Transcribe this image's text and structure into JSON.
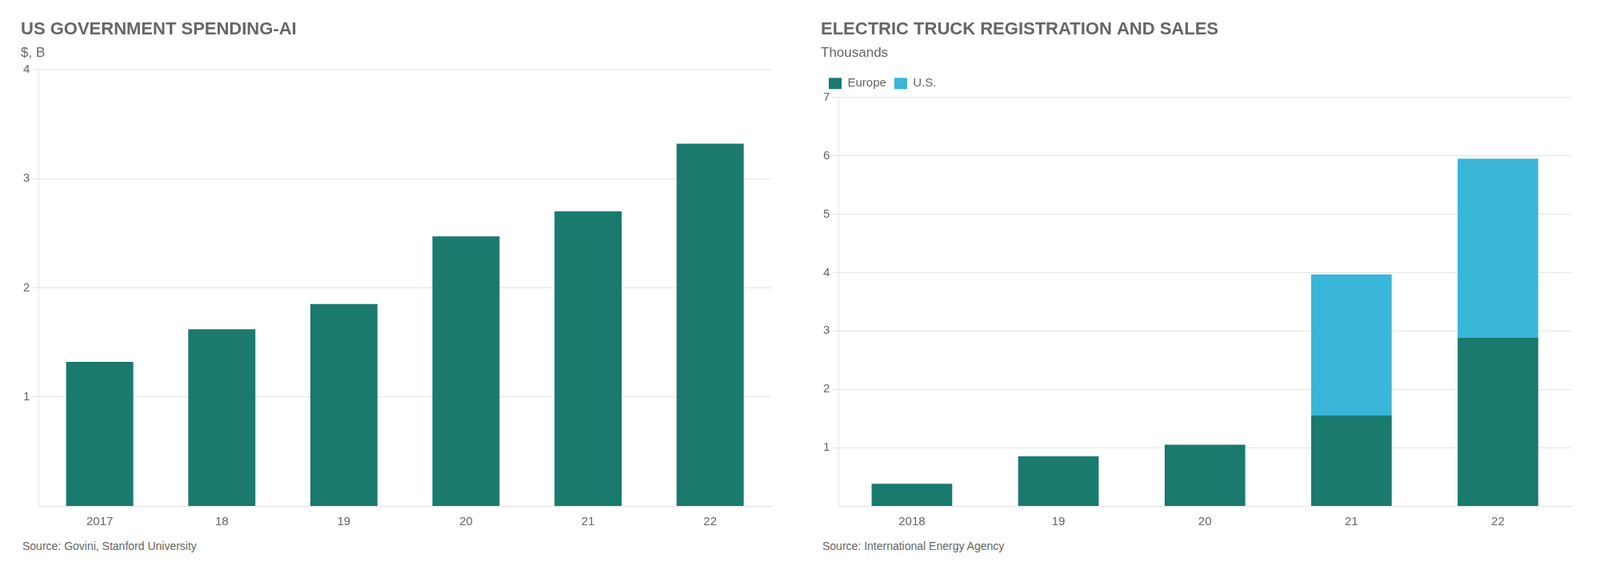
{
  "chart_data": [
    {
      "type": "bar",
      "title": "US GOVERNMENT SPENDING-AI",
      "subtitle": "$, B",
      "categories": [
        "2017",
        "18",
        "19",
        "20",
        "21",
        "22"
      ],
      "values": [
        1.32,
        1.62,
        1.85,
        2.47,
        2.7,
        3.32
      ],
      "color": "#1a7a6e",
      "ylim": [
        0,
        4
      ],
      "yticks": [
        1,
        2,
        3,
        4
      ],
      "grid": true,
      "source": "Source: Govini, Stanford University"
    },
    {
      "type": "bar",
      "title": "ELECTRIC TRUCK REGISTRATION AND SALES",
      "subtitle": "Thousands",
      "categories": [
        "2018",
        "19",
        "20",
        "21",
        "22"
      ],
      "series": [
        {
          "name": "Europe",
          "color": "#1a7a6e",
          "values": [
            0.38,
            0.85,
            1.05,
            1.55,
            2.88
          ]
        },
        {
          "name": "U.S.",
          "color": "#39b6d8",
          "values": [
            0.0,
            0.0,
            0.0,
            2.42,
            3.07
          ]
        }
      ],
      "stacked": true,
      "ylim": [
        0,
        7
      ],
      "yticks": [
        1,
        2,
        3,
        4,
        5,
        6,
        7
      ],
      "grid": true,
      "legend": "upper left",
      "source": "Source: International Energy Agency"
    }
  ]
}
